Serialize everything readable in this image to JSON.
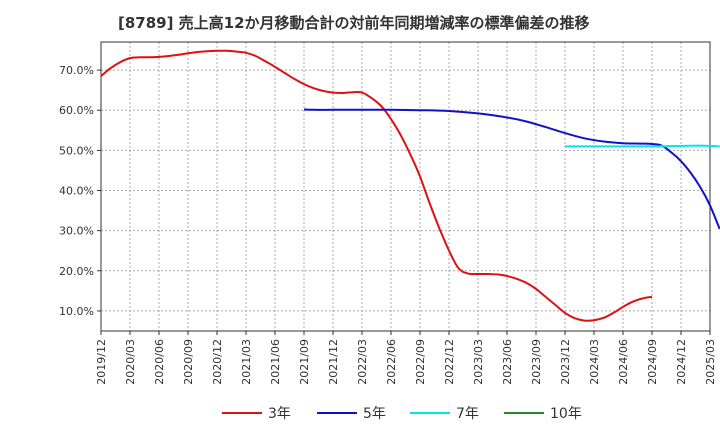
{
  "chart_data": {
    "type": "line",
    "title": "[8789]  売上高12か月移動合計の対前年同期増減率の標準偏差の推移",
    "xlabel": "",
    "ylabel": "",
    "ylim": [
      5,
      77
    ],
    "y_ticks": [
      10,
      20,
      30,
      40,
      50,
      60,
      70
    ],
    "y_tick_labels": [
      "10.0%",
      "20.0%",
      "30.0%",
      "40.0%",
      "50.0%",
      "60.0%",
      "70.0%"
    ],
    "x_tick_labels": [
      "2019/12",
      "2020/03",
      "2020/06",
      "2020/09",
      "2020/12",
      "2021/03",
      "2021/06",
      "2021/09",
      "2021/12",
      "2022/03",
      "2022/06",
      "2022/09",
      "2022/12",
      "2023/03",
      "2023/06",
      "2023/09",
      "2023/12",
      "2024/03",
      "2024/06",
      "2024/09",
      "2024/12",
      "2025/03"
    ],
    "grid": true,
    "legend_position": "bottom",
    "series": [
      {
        "name": "3年",
        "color": "#dd1111",
        "points": [
          [
            "2019/12",
            68.5
          ],
          [
            "2020/01",
            70.5
          ],
          [
            "2020/02",
            72.0
          ],
          [
            "2020/03",
            73.0
          ],
          [
            "2020/04",
            73.2
          ],
          [
            "2020/05",
            73.2
          ],
          [
            "2020/06",
            73.3
          ],
          [
            "2020/07",
            73.5
          ],
          [
            "2020/08",
            73.8
          ],
          [
            "2020/09",
            74.2
          ],
          [
            "2020/10",
            74.5
          ],
          [
            "2020/11",
            74.7
          ],
          [
            "2020/12",
            74.8
          ],
          [
            "2021/01",
            74.8
          ],
          [
            "2021/02",
            74.6
          ],
          [
            "2021/03",
            74.3
          ],
          [
            "2021/04",
            73.5
          ],
          [
            "2021/05",
            72.2
          ],
          [
            "2021/06",
            70.8
          ],
          [
            "2021/07",
            69.3
          ],
          [
            "2021/08",
            67.8
          ],
          [
            "2021/09",
            66.5
          ],
          [
            "2021/10",
            65.5
          ],
          [
            "2021/11",
            64.8
          ],
          [
            "2021/12",
            64.4
          ],
          [
            "2022/01",
            64.3
          ],
          [
            "2022/02",
            64.5
          ],
          [
            "2022/03",
            64.4
          ],
          [
            "2022/04",
            63.0
          ],
          [
            "2022/05",
            61.0
          ],
          [
            "2022/06",
            57.8
          ],
          [
            "2022/07",
            53.8
          ],
          [
            "2022/08",
            49.0
          ],
          [
            "2022/09",
            43.5
          ],
          [
            "2022/10",
            36.8
          ],
          [
            "2022/11",
            30.6
          ],
          [
            "2022/12",
            25.0
          ],
          [
            "2023/01",
            20.6
          ],
          [
            "2023/02",
            19.3
          ],
          [
            "2023/03",
            19.2
          ],
          [
            "2023/04",
            19.2
          ],
          [
            "2023/05",
            19.1
          ],
          [
            "2023/06",
            18.7
          ],
          [
            "2023/07",
            18.0
          ],
          [
            "2023/08",
            17.0
          ],
          [
            "2023/09",
            15.5
          ],
          [
            "2023/10",
            13.5
          ],
          [
            "2023/11",
            11.5
          ],
          [
            "2023/12",
            9.5
          ],
          [
            "2024/01",
            8.2
          ],
          [
            "2024/02",
            7.6
          ],
          [
            "2024/03",
            7.7
          ],
          [
            "2024/04",
            8.3
          ],
          [
            "2024/05",
            9.5
          ],
          [
            "2024/06",
            11.0
          ],
          [
            "2024/07",
            12.3
          ],
          [
            "2024/08",
            13.1
          ],
          [
            "2024/09",
            13.5
          ]
        ]
      },
      {
        "name": "5年",
        "color": "#1111cc",
        "points": [
          [
            "2021/09",
            60.2
          ],
          [
            "2021/10",
            60.1
          ],
          [
            "2021/12",
            60.1
          ],
          [
            "2022/03",
            60.1
          ],
          [
            "2022/06",
            60.1
          ],
          [
            "2022/09",
            60.0
          ],
          [
            "2022/12",
            59.8
          ],
          [
            "2023/03",
            59.2
          ],
          [
            "2023/06",
            58.2
          ],
          [
            "2023/08",
            57.2
          ],
          [
            "2023/10",
            55.8
          ],
          [
            "2023/12",
            54.3
          ],
          [
            "2024/02",
            53.0
          ],
          [
            "2024/04",
            52.2
          ],
          [
            "2024/06",
            51.8
          ],
          [
            "2024/08",
            51.7
          ],
          [
            "2024/09",
            51.6
          ],
          [
            "2024/10",
            51.2
          ],
          [
            "2024/11",
            49.5
          ],
          [
            "2024/12",
            47.3
          ],
          [
            "2025/01",
            44.4
          ],
          [
            "2025/02",
            40.8
          ],
          [
            "2025/03",
            36.3
          ],
          [
            "2025/04",
            30.4
          ]
        ]
      },
      {
        "name": "7年",
        "color": "#00e5ee",
        "points": [
          [
            "2023/12",
            51.0
          ],
          [
            "2024/01",
            51.0
          ],
          [
            "2024/03",
            51.0
          ],
          [
            "2024/06",
            51.0
          ],
          [
            "2024/09",
            51.0
          ],
          [
            "2024/12",
            51.1
          ],
          [
            "2025/02",
            51.2
          ],
          [
            "2025/04",
            51.0
          ]
        ]
      },
      {
        "name": "10年",
        "color": "#228b22",
        "points": []
      }
    ]
  }
}
